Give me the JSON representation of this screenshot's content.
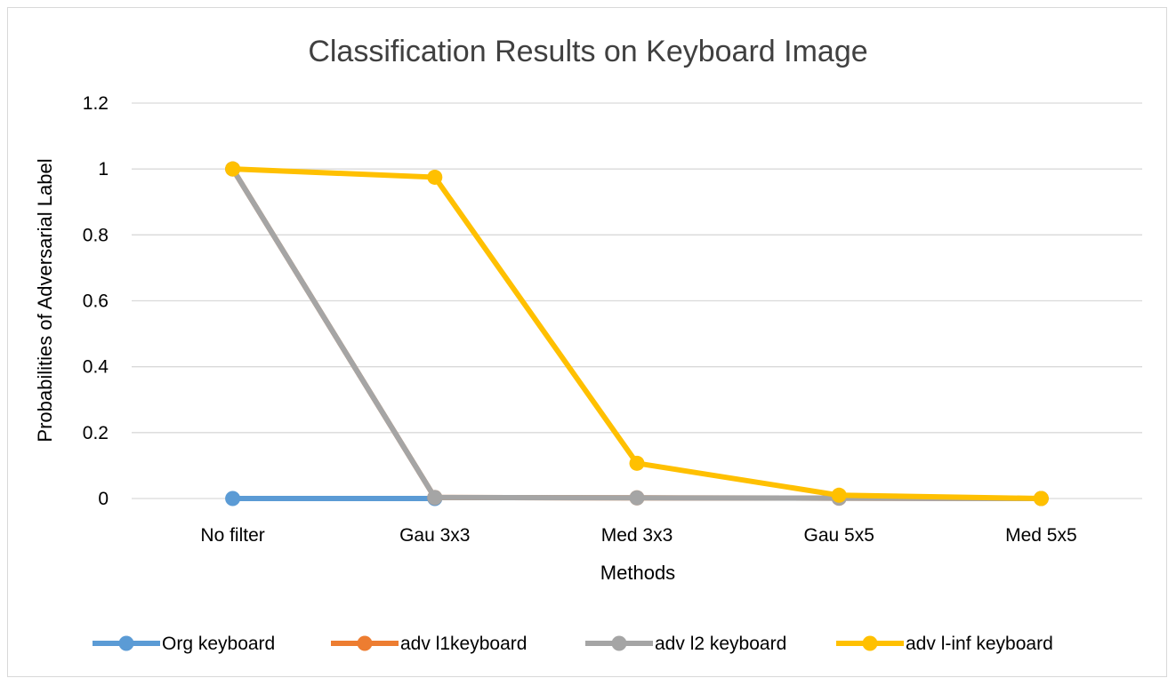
{
  "chart_data": {
    "type": "line",
    "title": "Classification Results on Keyboard Image",
    "xlabel": "Methods",
    "ylabel": "Probabilities of Adversarial Label",
    "categories": [
      "No filter",
      "Gau 3x3",
      "Med 3x3",
      "Gau 5x5",
      "Med 5x5"
    ],
    "ylim": [
      0,
      1.2
    ],
    "yticks": [
      "0",
      "0.2",
      "0.4",
      "0.6",
      "0.8",
      "1",
      "1.2"
    ],
    "grid": true,
    "legend_position": "bottom",
    "series": [
      {
        "name": "Org keyboard",
        "color": "#5B9BD5",
        "values": [
          0,
          0,
          null,
          null,
          null
        ]
      },
      {
        "name": "adv l1keyboard",
        "color": "#ED7D31",
        "values": [
          1,
          0.003,
          0.002,
          0.001,
          0
        ]
      },
      {
        "name": "adv l2 keyboard",
        "color": "#A5A5A5",
        "values": [
          1,
          0.003,
          0.002,
          0.001,
          0
        ]
      },
      {
        "name": "adv l-inf keyboard",
        "color": "#FFC000",
        "values": [
          1,
          0.975,
          0.107,
          0.01,
          0
        ]
      }
    ]
  }
}
